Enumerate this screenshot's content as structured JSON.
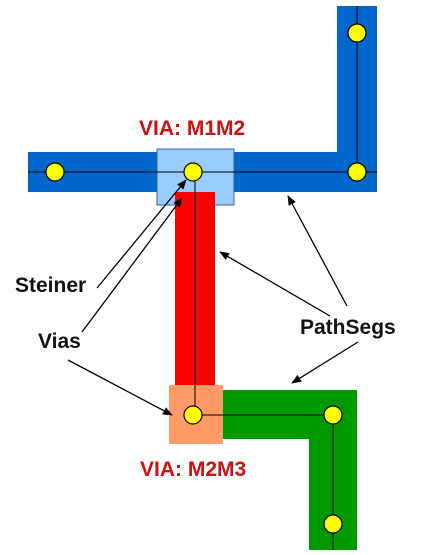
{
  "labels": {
    "via_m1m2": "VIA: M1M2",
    "via_m2m3": "VIA: M2M3",
    "steiner": "Steiner",
    "vias": "Vias",
    "pathsegs": "PathSegs"
  },
  "colors": {
    "metal1": "#0066cc",
    "metal2": "#ff0000",
    "metal3": "#009900",
    "via_m1m2": "#99ccff",
    "via_m2m3": "#ff9966",
    "node": "#ffff00",
    "via_label": "#cc1111"
  }
}
